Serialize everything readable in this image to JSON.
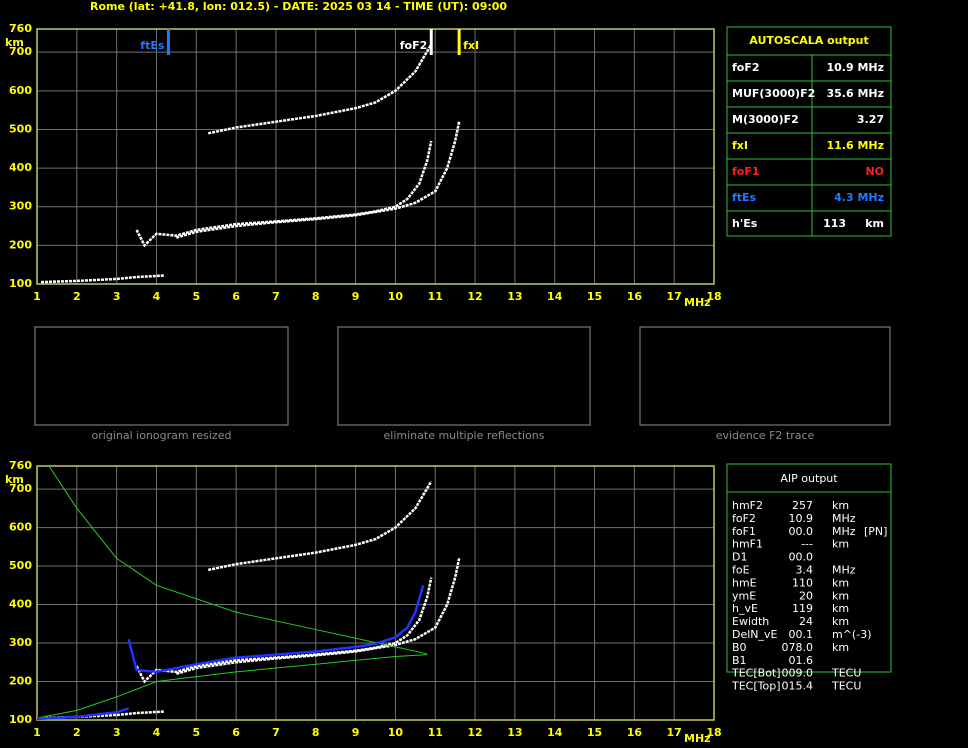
{
  "header": "Rome (lat: +41.8, lon: 012.5) - DATE: 2025 03 14 - TIME (UT): 09:00",
  "chart_data": [
    {
      "type": "line",
      "x_unit": "MHz",
      "y_unit": "km",
      "xlim": [
        1,
        18
      ],
      "ylim": [
        100,
        760
      ],
      "xticks": [
        1,
        2,
        3,
        4,
        5,
        6,
        7,
        8,
        9,
        10,
        11,
        12,
        13,
        14,
        15,
        16,
        17,
        18
      ],
      "yticks": [
        100,
        200,
        300,
        400,
        500,
        600,
        700,
        760
      ],
      "grid": true,
      "series": [
        {
          "color": "#ffffff",
          "x": [
            1.1,
            2,
            3,
            3.5,
            4.2
          ],
          "values": [
            105,
            108,
            113,
            118,
            122
          ]
        },
        {
          "color": "#ffffff",
          "x": [
            3.5,
            3.7,
            4,
            4.5,
            5,
            6,
            7,
            8,
            9,
            9.5,
            10,
            10.3,
            10.6,
            10.8,
            10.9
          ],
          "values": [
            240,
            200,
            230,
            225,
            240,
            255,
            262,
            270,
            280,
            288,
            300,
            320,
            360,
            420,
            470
          ]
        },
        {
          "color": "#ffffff",
          "x": [
            4.5,
            5,
            6,
            7,
            8,
            9,
            10,
            10.5,
            11,
            11.3,
            11.5,
            11.6
          ],
          "values": [
            220,
            235,
            250,
            260,
            268,
            278,
            295,
            310,
            340,
            400,
            470,
            520
          ]
        },
        {
          "color": "#ffffff",
          "x": [
            5.3,
            6,
            7,
            8,
            9,
            9.5,
            10,
            10.5,
            10.9
          ],
          "values": [
            490,
            505,
            520,
            535,
            555,
            570,
            600,
            650,
            720
          ]
        }
      ],
      "markers": [
        {
          "label": "ftEs",
          "x": 4.3,
          "color": "#1e7bff"
        },
        {
          "label": "foF2",
          "x": 10.9,
          "color": "#ffffff"
        },
        {
          "label": "fxI",
          "x": 11.6,
          "color": "#ffff00"
        }
      ]
    },
    {
      "type": "line",
      "x_unit": "MHz",
      "y_unit": "km",
      "xlim": [
        1,
        18
      ],
      "ylim": [
        100,
        760
      ],
      "xticks": [
        1,
        2,
        3,
        4,
        5,
        6,
        7,
        8,
        9,
        10,
        11,
        12,
        13,
        14,
        15,
        16,
        17,
        18
      ],
      "yticks": [
        100,
        200,
        300,
        400,
        500,
        600,
        700,
        760
      ],
      "grid": true,
      "series": [
        {
          "color": "#ffffff",
          "x": [
            1.1,
            2,
            3,
            3.5,
            4.2
          ],
          "values": [
            105,
            108,
            113,
            118,
            122
          ]
        },
        {
          "color": "#ffffff",
          "x": [
            3.5,
            3.7,
            4,
            4.5,
            5,
            6,
            7,
            8,
            9,
            9.5,
            10,
            10.3,
            10.6,
            10.8,
            10.9
          ],
          "values": [
            240,
            200,
            230,
            225,
            240,
            255,
            262,
            270,
            280,
            288,
            300,
            320,
            360,
            420,
            470
          ]
        },
        {
          "color": "#ffffff",
          "x": [
            4.5,
            5,
            6,
            7,
            8,
            9,
            10,
            10.5,
            11,
            11.3,
            11.5,
            11.6
          ],
          "values": [
            220,
            235,
            250,
            260,
            268,
            278,
            295,
            310,
            340,
            400,
            470,
            520
          ]
        },
        {
          "color": "#ffffff",
          "x": [
            5.3,
            6,
            7,
            8,
            9,
            9.5,
            10,
            10.5,
            10.9
          ],
          "values": [
            490,
            505,
            520,
            535,
            555,
            570,
            600,
            650,
            720
          ]
        },
        {
          "color": "#22cc22",
          "x": [
            1.3,
            2,
            3,
            4,
            6,
            8,
            10,
            10.8
          ],
          "values": [
            760,
            650,
            520,
            450,
            380,
            335,
            290,
            272
          ]
        },
        {
          "color": "#22cc22",
          "x": [
            1,
            2,
            3,
            4,
            6,
            8,
            10,
            10.8
          ],
          "values": [
            105,
            125,
            160,
            200,
            225,
            245,
            265,
            270
          ]
        },
        {
          "color": "#2233ff",
          "x": [
            1,
            2,
            3,
            3.3
          ],
          "values": [
            103,
            108,
            120,
            130
          ]
        },
        {
          "color": "#2233ff",
          "x": [
            3.3,
            3.5,
            4,
            5,
            6,
            7,
            8,
            9,
            9.5,
            10,
            10.3,
            10.5,
            10.7
          ],
          "values": [
            310,
            230,
            225,
            245,
            262,
            270,
            278,
            290,
            298,
            315,
            340,
            380,
            450
          ]
        }
      ]
    }
  ],
  "thumbnails": [
    {
      "caption": "original ionogram resized"
    },
    {
      "caption": "eliminate multiple reflections"
    },
    {
      "caption": "evidence F2 trace"
    }
  ],
  "autoscala": {
    "title": "AUTOSCALA output",
    "rows": [
      {
        "label": "foF2",
        "value": "10.9 MHz",
        "color": "#ffffff"
      },
      {
        "label": "MUF(3000)F2",
        "value": "35.6 MHz",
        "color": "#ffffff"
      },
      {
        "label": "M(3000)F2",
        "value": "3.27",
        "color": "#ffffff"
      },
      {
        "label": "fxI",
        "value": "11.6 MHz",
        "color": "#ffff00"
      },
      {
        "label": "foF1",
        "value": "NO",
        "color": "#ff2020"
      },
      {
        "label": "ftEs",
        "value": "4.3 MHz",
        "color": "#1e7bff"
      },
      {
        "label": "h'Es",
        "value": "113     km",
        "color": "#ffffff"
      }
    ]
  },
  "aip": {
    "title": "AIP output",
    "rows": [
      [
        "hmF2",
        "257",
        "km",
        ""
      ],
      [
        "foF2",
        "10.9",
        "MHz",
        ""
      ],
      [
        "foF1",
        "00.0",
        "MHz",
        "[PN]"
      ],
      [
        "hmF1",
        "---",
        "km",
        ""
      ],
      [
        "D1",
        "00.0",
        "",
        ""
      ],
      [
        "foE",
        "3.4",
        "MHz",
        ""
      ],
      [
        "hmE",
        "110",
        "km",
        ""
      ],
      [
        "ymE",
        "20",
        "km",
        ""
      ],
      [
        "h_vE",
        "119",
        "km",
        ""
      ],
      [
        "Ewidth",
        "24",
        "km",
        ""
      ],
      [
        "DelN_vE",
        "00.1",
        "m^(-3)",
        ""
      ],
      [
        "B0",
        "078.0",
        "km",
        ""
      ],
      [
        "B1",
        "01.6",
        "",
        ""
      ],
      [
        "TEC[Bot]",
        "009.0",
        "TECU",
        ""
      ],
      [
        "TEC[Top]",
        "015.4",
        "TECU",
        ""
      ]
    ]
  }
}
